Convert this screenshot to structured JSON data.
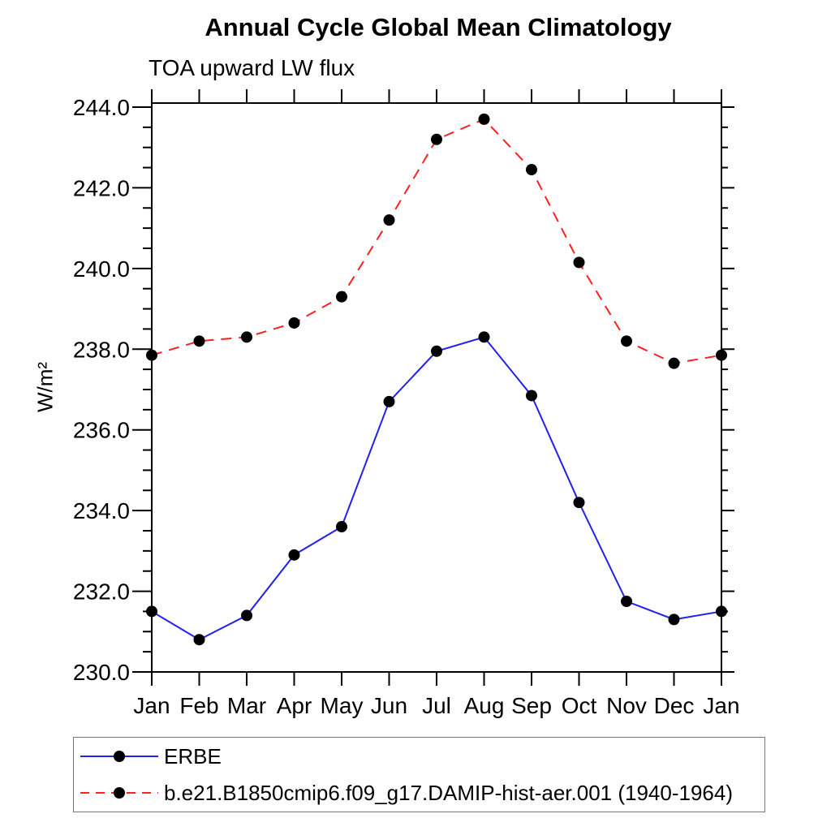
{
  "title": "Annual Cycle Global Mean Climatology",
  "subtitle": "TOA upward LW flux",
  "chart_data": {
    "type": "line",
    "categories": [
      "Jan",
      "Feb",
      "Mar",
      "Apr",
      "May",
      "Jun",
      "Jul",
      "Aug",
      "Sep",
      "Oct",
      "Nov",
      "Dec",
      "Jan"
    ],
    "series": [
      {
        "name": "ERBE",
        "color": "#2222ee",
        "dashed": false,
        "marker": "filled-circle",
        "marker_color": "#000000",
        "values": [
          231.5,
          230.8,
          231.4,
          232.9,
          233.6,
          236.7,
          237.95,
          238.3,
          236.85,
          234.2,
          231.75,
          231.3,
          231.5
        ]
      },
      {
        "name": "b.e21.B1850cmip6.f09_g17.DAMIP-hist-aer.001 (1940-1964)",
        "color": "#ff2020",
        "dashed": true,
        "marker": "filled-circle",
        "marker_color": "#000000",
        "values": [
          237.85,
          238.2,
          238.3,
          238.65,
          239.3,
          241.2,
          243.2,
          243.7,
          242.45,
          240.15,
          238.2,
          237.65,
          237.85
        ]
      }
    ],
    "xlabel": "",
    "ylabel": "W/m²",
    "ylim": [
      230.0,
      244.1
    ],
    "ytick_major_step": 2.0,
    "ytick_minor_step": 0.5,
    "ytick_labels": [
      "230.0",
      "232.0",
      "234.0",
      "236.0",
      "238.0",
      "240.0",
      "242.0",
      "244.0"
    ],
    "grid": false,
    "legend_position": "bottom-left"
  }
}
